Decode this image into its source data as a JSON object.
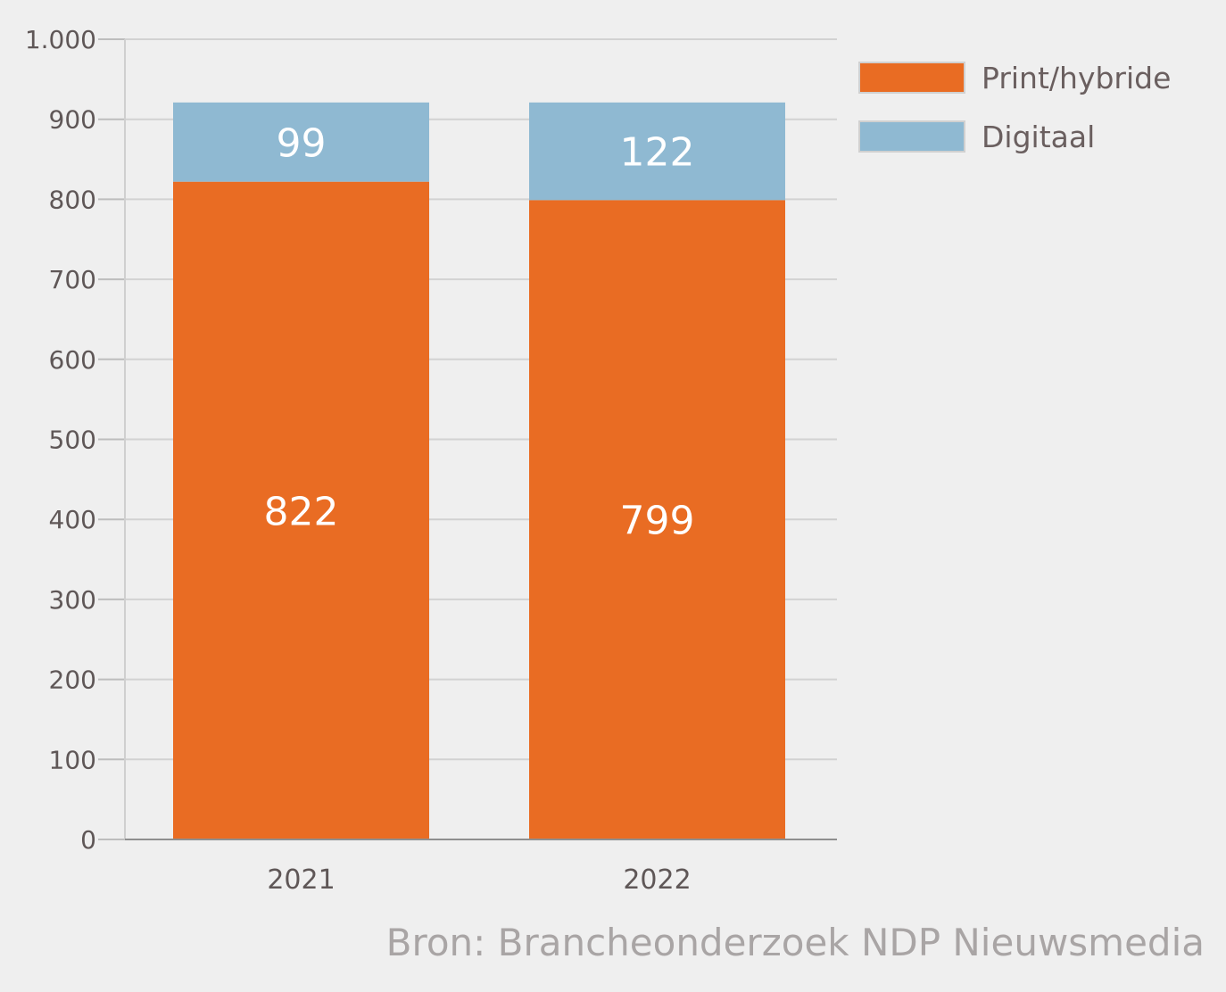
{
  "chart_data": {
    "type": "bar",
    "stacked": true,
    "categories": [
      "2021",
      "2022"
    ],
    "series": [
      {
        "name": "Print/hybride",
        "values": [
          822,
          799
        ],
        "color": "#e96c23"
      },
      {
        "name": "Digitaal",
        "values": [
          99,
          122
        ],
        "color": "#8fb9d2"
      }
    ],
    "ylim": [
      0,
      1000
    ],
    "yticks": [
      0,
      100,
      200,
      300,
      400,
      500,
      600,
      700,
      800,
      900,
      1000
    ],
    "ytick_labels": [
      "0",
      "100",
      "200",
      "300",
      "400",
      "500",
      "600",
      "700",
      "800",
      "900",
      "1.000"
    ],
    "grid": true,
    "legend_position": "top-right",
    "source": "Bron: Brancheonderzoek NDP Nieuwsmedia"
  }
}
